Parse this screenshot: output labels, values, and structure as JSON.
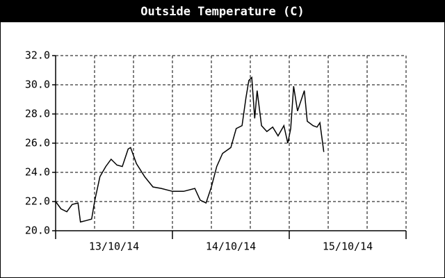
{
  "chart_data": {
    "type": "line",
    "title": "Outside Temperature (C)",
    "x": [
      0,
      1.1,
      2.3,
      3.4,
      4.6,
      5.1,
      6.3,
      7.4,
      8,
      9.1,
      10.3,
      11.4,
      12.6,
      13.7,
      14.9,
      15.4,
      16.6,
      18.3,
      20,
      21.7,
      24,
      26.3,
      28.6,
      29.7,
      30.9,
      32,
      33.1,
      34.3,
      36,
      37.1,
      38.3,
      39.1,
      39.7,
      40.3,
      40.9,
      41.4,
      42.3,
      43.4,
      44.6,
      45.7,
      46.9,
      47.7,
      48.3,
      48.9,
      49.7,
      50.6,
      51.1,
      51.7,
      52.9,
      53.7,
      54.3,
      55.1
    ],
    "series": [
      {
        "name": "Outside Temperature",
        "color": "#000000",
        "values": [
          22.0,
          21.5,
          21.3,
          21.8,
          21.9,
          20.6,
          20.7,
          20.8,
          22.0,
          23.7,
          24.4,
          24.9,
          24.5,
          24.4,
          25.6,
          25.7,
          24.6,
          23.7,
          23.0,
          22.9,
          22.7,
          22.7,
          22.9,
          22.1,
          21.9,
          23.0,
          24.4,
          25.3,
          25.7,
          27.0,
          27.2,
          29.1,
          30.3,
          30.5,
          27.7,
          29.6,
          27.2,
          26.8,
          27.1,
          26.5,
          27.2,
          26.0,
          27.0,
          29.9,
          28.2,
          29.1,
          29.6,
          27.5,
          27.2,
          27.1,
          27.4,
          25.4
        ]
      }
    ],
    "xlim": [
      0,
      72
    ],
    "xticks": [
      {
        "value": 12,
        "label": "13/10/14"
      },
      {
        "value": 36,
        "label": "14/10/14"
      },
      {
        "value": 60,
        "label": "15/10/14"
      }
    ],
    "xgrid": [
      0,
      8,
      16,
      24,
      32,
      40,
      48,
      56,
      64,
      72
    ],
    "xday_ticks": [
      0,
      24,
      48,
      72
    ],
    "ylim": [
      20,
      32
    ],
    "yticks": [
      {
        "value": 20,
        "label": "20.0"
      },
      {
        "value": 22,
        "label": "22.0"
      },
      {
        "value": 24,
        "label": "24.0"
      },
      {
        "value": 26,
        "label": "26.0"
      },
      {
        "value": 28,
        "label": "28.0"
      },
      {
        "value": 30,
        "label": "30.0"
      },
      {
        "value": 32,
        "label": "32.0"
      }
    ],
    "grid": true
  }
}
